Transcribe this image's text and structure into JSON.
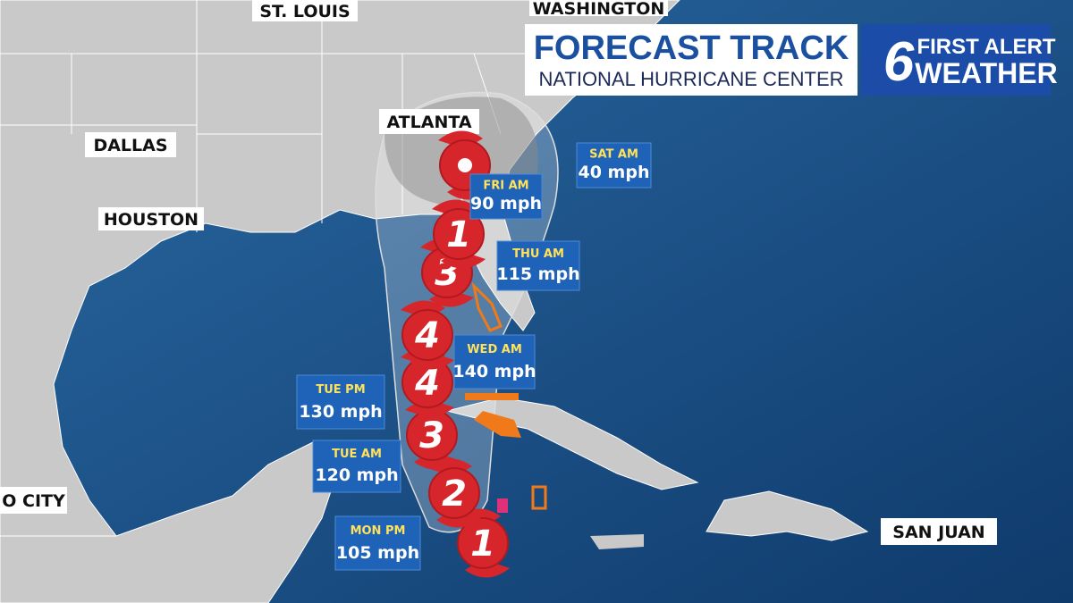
{
  "header": {
    "title": "FORECAST TRACK",
    "subtitle": "NATIONAL HURRICANE CENTER",
    "brand_number": "6",
    "brand_line1": "FIRST ALERT",
    "brand_line2": "WEATHER"
  },
  "cities": [
    "ST. LOUIS",
    "WASHINGTON",
    "ATLANTA",
    "DALLAS",
    "HOUSTON",
    "O CITY",
    "SAN JUAN"
  ],
  "forecast_points": [
    {
      "time": "MON PM",
      "wind": "105 mph"
    },
    {
      "time": "TUE AM",
      "wind": "120 mph"
    },
    {
      "time": "TUE PM",
      "wind": "130 mph"
    },
    {
      "time": "WED AM",
      "wind": "140 mph"
    },
    {
      "time": "THU AM",
      "wind": "115 mph"
    },
    {
      "time": "FRI AM",
      "wind": "90 mph"
    },
    {
      "time": "SAT AM",
      "wind": "40 mph"
    }
  ],
  "storm_categories": [
    "1",
    "2",
    "3",
    "4",
    "4",
    "3",
    "1"
  ]
}
